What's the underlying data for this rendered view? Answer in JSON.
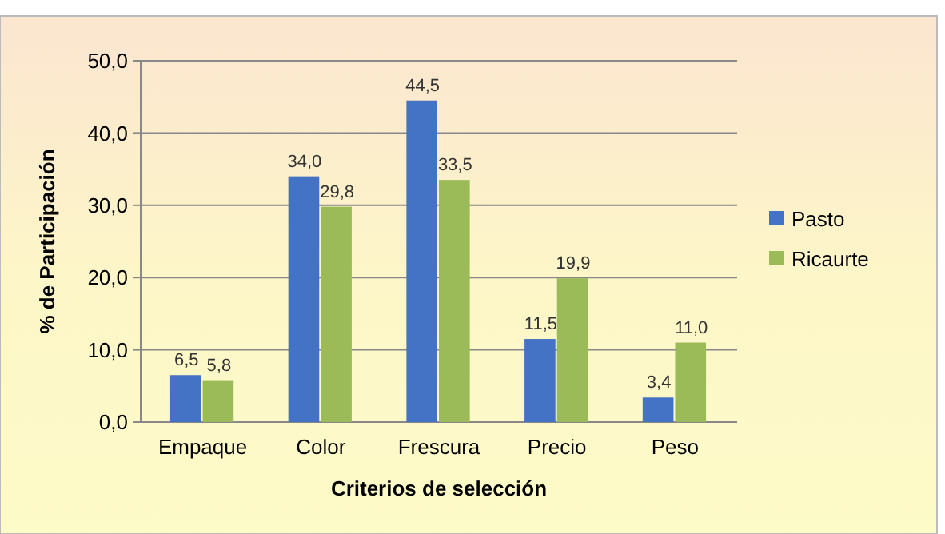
{
  "chart_data": {
    "type": "bar",
    "xlabel": "Criterios de selección",
    "ylabel": "% de Participación",
    "categories": [
      "Empaque",
      "Color",
      "Frescura",
      "Precio",
      "Peso"
    ],
    "series": [
      {
        "name": "Pasto",
        "color": "#4472c4",
        "values": [
          6.5,
          34.0,
          44.5,
          11.5,
          3.4
        ],
        "value_labels": [
          "6,5",
          "34,0",
          "44,5",
          "11,5",
          "3,4"
        ]
      },
      {
        "name": "Ricaurte",
        "color": "#9bbb59",
        "values": [
          5.8,
          29.8,
          33.5,
          19.9,
          11.0
        ],
        "value_labels": [
          "5,8",
          "29,8",
          "33,5",
          "19,9",
          "11,0"
        ]
      }
    ],
    "ylim": [
      0,
      50
    ],
    "yticks": [
      {
        "value": 0,
        "label": "0,0"
      },
      {
        "value": 10,
        "label": "10,0"
      },
      {
        "value": 20,
        "label": "20,0"
      },
      {
        "value": 30,
        "label": "30,0"
      },
      {
        "value": 40,
        "label": "40,0"
      },
      {
        "value": 50,
        "label": "50,0"
      }
    ],
    "grid": "y",
    "legend": "right"
  }
}
